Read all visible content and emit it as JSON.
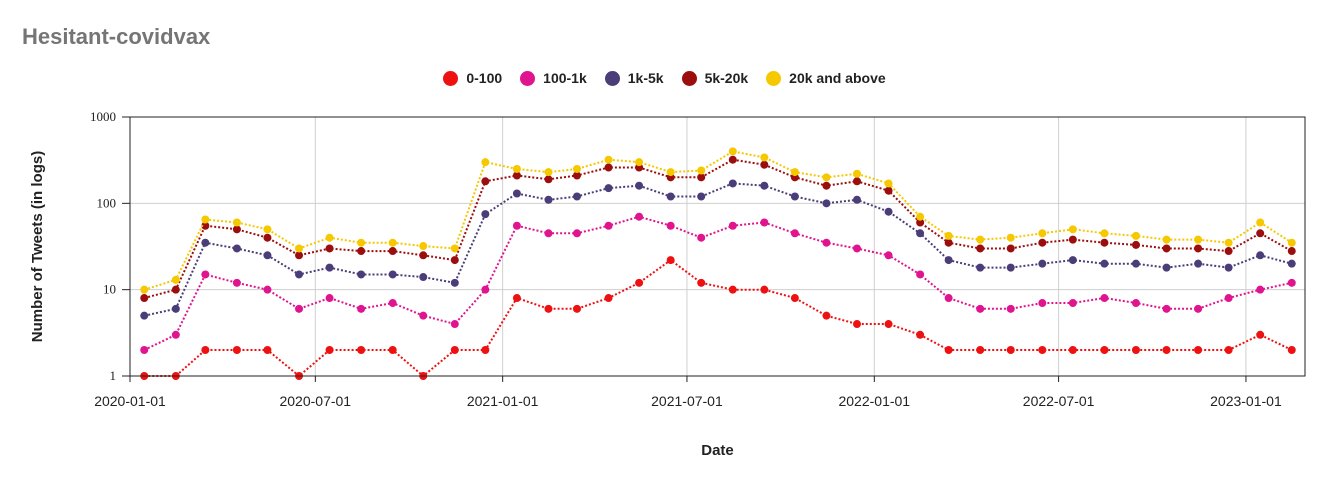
{
  "chart_data": {
    "type": "line",
    "title": "Hesitant-covidvax",
    "xlabel": "Date",
    "ylabel": "Number of Tweets (in logs)",
    "yscale": "log",
    "ylim": [
      1,
      1000
    ],
    "yticks": [
      {
        "value": 1,
        "label": "1"
      },
      {
        "value": 10,
        "label": "10"
      },
      {
        "value": 100,
        "label": "100"
      },
      {
        "value": 1000,
        "label": "1000"
      }
    ],
    "xlim": [
      "2020-01-01",
      "2023-02-28"
    ],
    "xticks": [
      "2020-01-01",
      "2020-07-01",
      "2021-01-01",
      "2021-07-01",
      "2022-01-01",
      "2022-07-01",
      "2023-01-01"
    ],
    "grid": true,
    "legend_position": "top-center",
    "x": [
      "2020-01-15",
      "2020-02-15",
      "2020-03-15",
      "2020-04-15",
      "2020-05-15",
      "2020-06-15",
      "2020-07-15",
      "2020-08-15",
      "2020-09-15",
      "2020-10-15",
      "2020-11-15",
      "2020-12-15",
      "2021-01-15",
      "2021-02-15",
      "2021-03-15",
      "2021-04-15",
      "2021-05-15",
      "2021-06-15",
      "2021-07-15",
      "2021-08-15",
      "2021-09-15",
      "2021-10-15",
      "2021-11-15",
      "2021-12-15",
      "2022-01-15",
      "2022-02-15",
      "2022-03-15",
      "2022-04-15",
      "2022-05-15",
      "2022-06-15",
      "2022-07-15",
      "2022-08-15",
      "2022-09-15",
      "2022-10-15",
      "2022-11-15",
      "2022-12-15",
      "2023-01-15",
      "2023-02-15"
    ],
    "series": [
      {
        "name": "0-100",
        "color": "#ee1111",
        "values": [
          1,
          1,
          2,
          2,
          2,
          1,
          2,
          2,
          2,
          1,
          2,
          2,
          8,
          6,
          6,
          8,
          12,
          22,
          12,
          10,
          10,
          8,
          5,
          4,
          4,
          3,
          2,
          2,
          2,
          2,
          2,
          2,
          2,
          2,
          2,
          2,
          3,
          2
        ]
      },
      {
        "name": "100-1k",
        "color": "#e0148f",
        "values": [
          2,
          3,
          15,
          12,
          10,
          6,
          8,
          6,
          7,
          5,
          4,
          10,
          55,
          45,
          45,
          55,
          70,
          55,
          40,
          55,
          60,
          45,
          35,
          30,
          25,
          15,
          8,
          6,
          6,
          7,
          7,
          8,
          7,
          6,
          6,
          8,
          10,
          12
        ]
      },
      {
        "name": "1k-5k",
        "color": "#4b3e78",
        "values": [
          5,
          6,
          35,
          30,
          25,
          15,
          18,
          15,
          15,
          14,
          12,
          75,
          130,
          110,
          120,
          150,
          160,
          120,
          120,
          170,
          160,
          120,
          100,
          110,
          80,
          45,
          22,
          18,
          18,
          20,
          22,
          20,
          20,
          18,
          20,
          18,
          25,
          20
        ]
      },
      {
        "name": "5k-20k",
        "color": "#9c0d0d",
        "values": [
          8,
          10,
          55,
          50,
          40,
          25,
          30,
          28,
          28,
          25,
          22,
          180,
          210,
          190,
          210,
          260,
          260,
          200,
          200,
          320,
          280,
          200,
          160,
          180,
          140,
          60,
          35,
          30,
          30,
          35,
          38,
          35,
          33,
          30,
          30,
          28,
          45,
          28
        ]
      },
      {
        "name": "20k and above",
        "color": "#f5c800",
        "values": [
          10,
          13,
          65,
          60,
          50,
          30,
          40,
          35,
          35,
          32,
          30,
          300,
          250,
          230,
          250,
          320,
          300,
          230,
          240,
          400,
          340,
          230,
          200,
          220,
          170,
          70,
          42,
          38,
          40,
          45,
          50,
          45,
          42,
          38,
          38,
          35,
          60,
          35
        ]
      }
    ]
  }
}
